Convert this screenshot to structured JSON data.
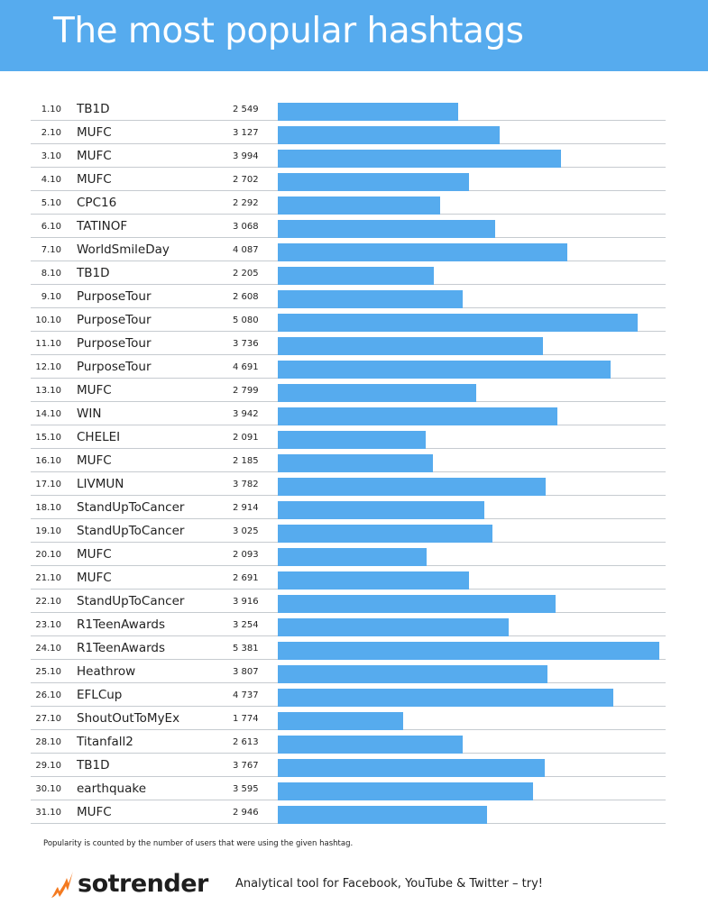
{
  "title": "The most popular hashtags",
  "footnote": "Popularity is counted by the number of users that were using the given hashtag.",
  "brand": {
    "name": "sotrender",
    "tagline": "Analytical tool for Facebook, YouTube & Twitter – try!",
    "icon": "flame-icon",
    "colors": {
      "accent": "#56abee",
      "logo_orange": "#f47a20"
    }
  },
  "chart_data": {
    "type": "bar",
    "orientation": "horizontal",
    "bar_color": "#56abee",
    "grid": false,
    "rows": [
      {
        "date": "1.10",
        "hashtag": "TB1D",
        "label": "2 549",
        "value": 2549
      },
      {
        "date": "2.10",
        "hashtag": "MUFC",
        "label": "3 127",
        "value": 3127
      },
      {
        "date": "3.10",
        "hashtag": "MUFC",
        "label": "3 994",
        "value": 3994
      },
      {
        "date": "4.10",
        "hashtag": "MUFC",
        "label": "2 702",
        "value": 2702
      },
      {
        "date": "5.10",
        "hashtag": "CPC16",
        "label": "2 292",
        "value": 2292
      },
      {
        "date": "6.10",
        "hashtag": "TATINOF",
        "label": "3 068",
        "value": 3068
      },
      {
        "date": "7.10",
        "hashtag": "WorldSmileDay",
        "label": "4 087",
        "value": 4087
      },
      {
        "date": "8.10",
        "hashtag": "TB1D",
        "label": "2 205",
        "value": 2205
      },
      {
        "date": "9.10",
        "hashtag": "PurposeTour",
        "label": "2 608",
        "value": 2608
      },
      {
        "date": "10.10",
        "hashtag": "PurposeTour",
        "label": "5 080",
        "value": 5080
      },
      {
        "date": "11.10",
        "hashtag": "PurposeTour",
        "label": "3 736",
        "value": 3736
      },
      {
        "date": "12.10",
        "hashtag": "PurposeTour",
        "label": "4 691",
        "value": 4691
      },
      {
        "date": "13.10",
        "hashtag": "MUFC",
        "label": "2 799",
        "value": 2799
      },
      {
        "date": "14.10",
        "hashtag": "WIN",
        "label": "3 942",
        "value": 3942
      },
      {
        "date": "15.10",
        "hashtag": "CHELEI",
        "label": "2 091",
        "value": 2091
      },
      {
        "date": "16.10",
        "hashtag": "MUFC",
        "label": "2 185",
        "value": 2185
      },
      {
        "date": "17.10",
        "hashtag": "LIVMUN",
        "label": "3 782",
        "value": 3782
      },
      {
        "date": "18.10",
        "hashtag": "StandUpToCancer",
        "label": "2 914",
        "value": 2914
      },
      {
        "date": "19.10",
        "hashtag": "StandUpToCancer",
        "label": "3 025",
        "value": 3025
      },
      {
        "date": "20.10",
        "hashtag": "MUFC",
        "label": "2 093",
        "value": 2093
      },
      {
        "date": "21.10",
        "hashtag": "MUFC",
        "label": "2 691",
        "value": 2691
      },
      {
        "date": "22.10",
        "hashtag": "StandUpToCancer",
        "label": "3 916",
        "value": 3916
      },
      {
        "date": "23.10",
        "hashtag": "R1TeenAwards",
        "label": "3 254",
        "value": 3254
      },
      {
        "date": "24.10",
        "hashtag": "R1TeenAwards",
        "label": "5 381",
        "value": 5381
      },
      {
        "date": "25.10",
        "hashtag": "Heathrow",
        "label": "3 807",
        "value": 3807
      },
      {
        "date": "26.10",
        "hashtag": "EFLCup",
        "label": "4 737",
        "value": 4737
      },
      {
        "date": "27.10",
        "hashtag": "ShoutOutToMyEx",
        "label": "1 774",
        "value": 1774
      },
      {
        "date": "28.10",
        "hashtag": "Titanfall2",
        "label": "2 613",
        "value": 2613
      },
      {
        "date": "29.10",
        "hashtag": "TB1D",
        "label": "3 767",
        "value": 3767
      },
      {
        "date": "30.10",
        "hashtag": "earthquake",
        "label": "3 595",
        "value": 3595
      },
      {
        "date": "31.10",
        "hashtag": "MUFC",
        "label": "2 946",
        "value": 2946
      }
    ]
  }
}
